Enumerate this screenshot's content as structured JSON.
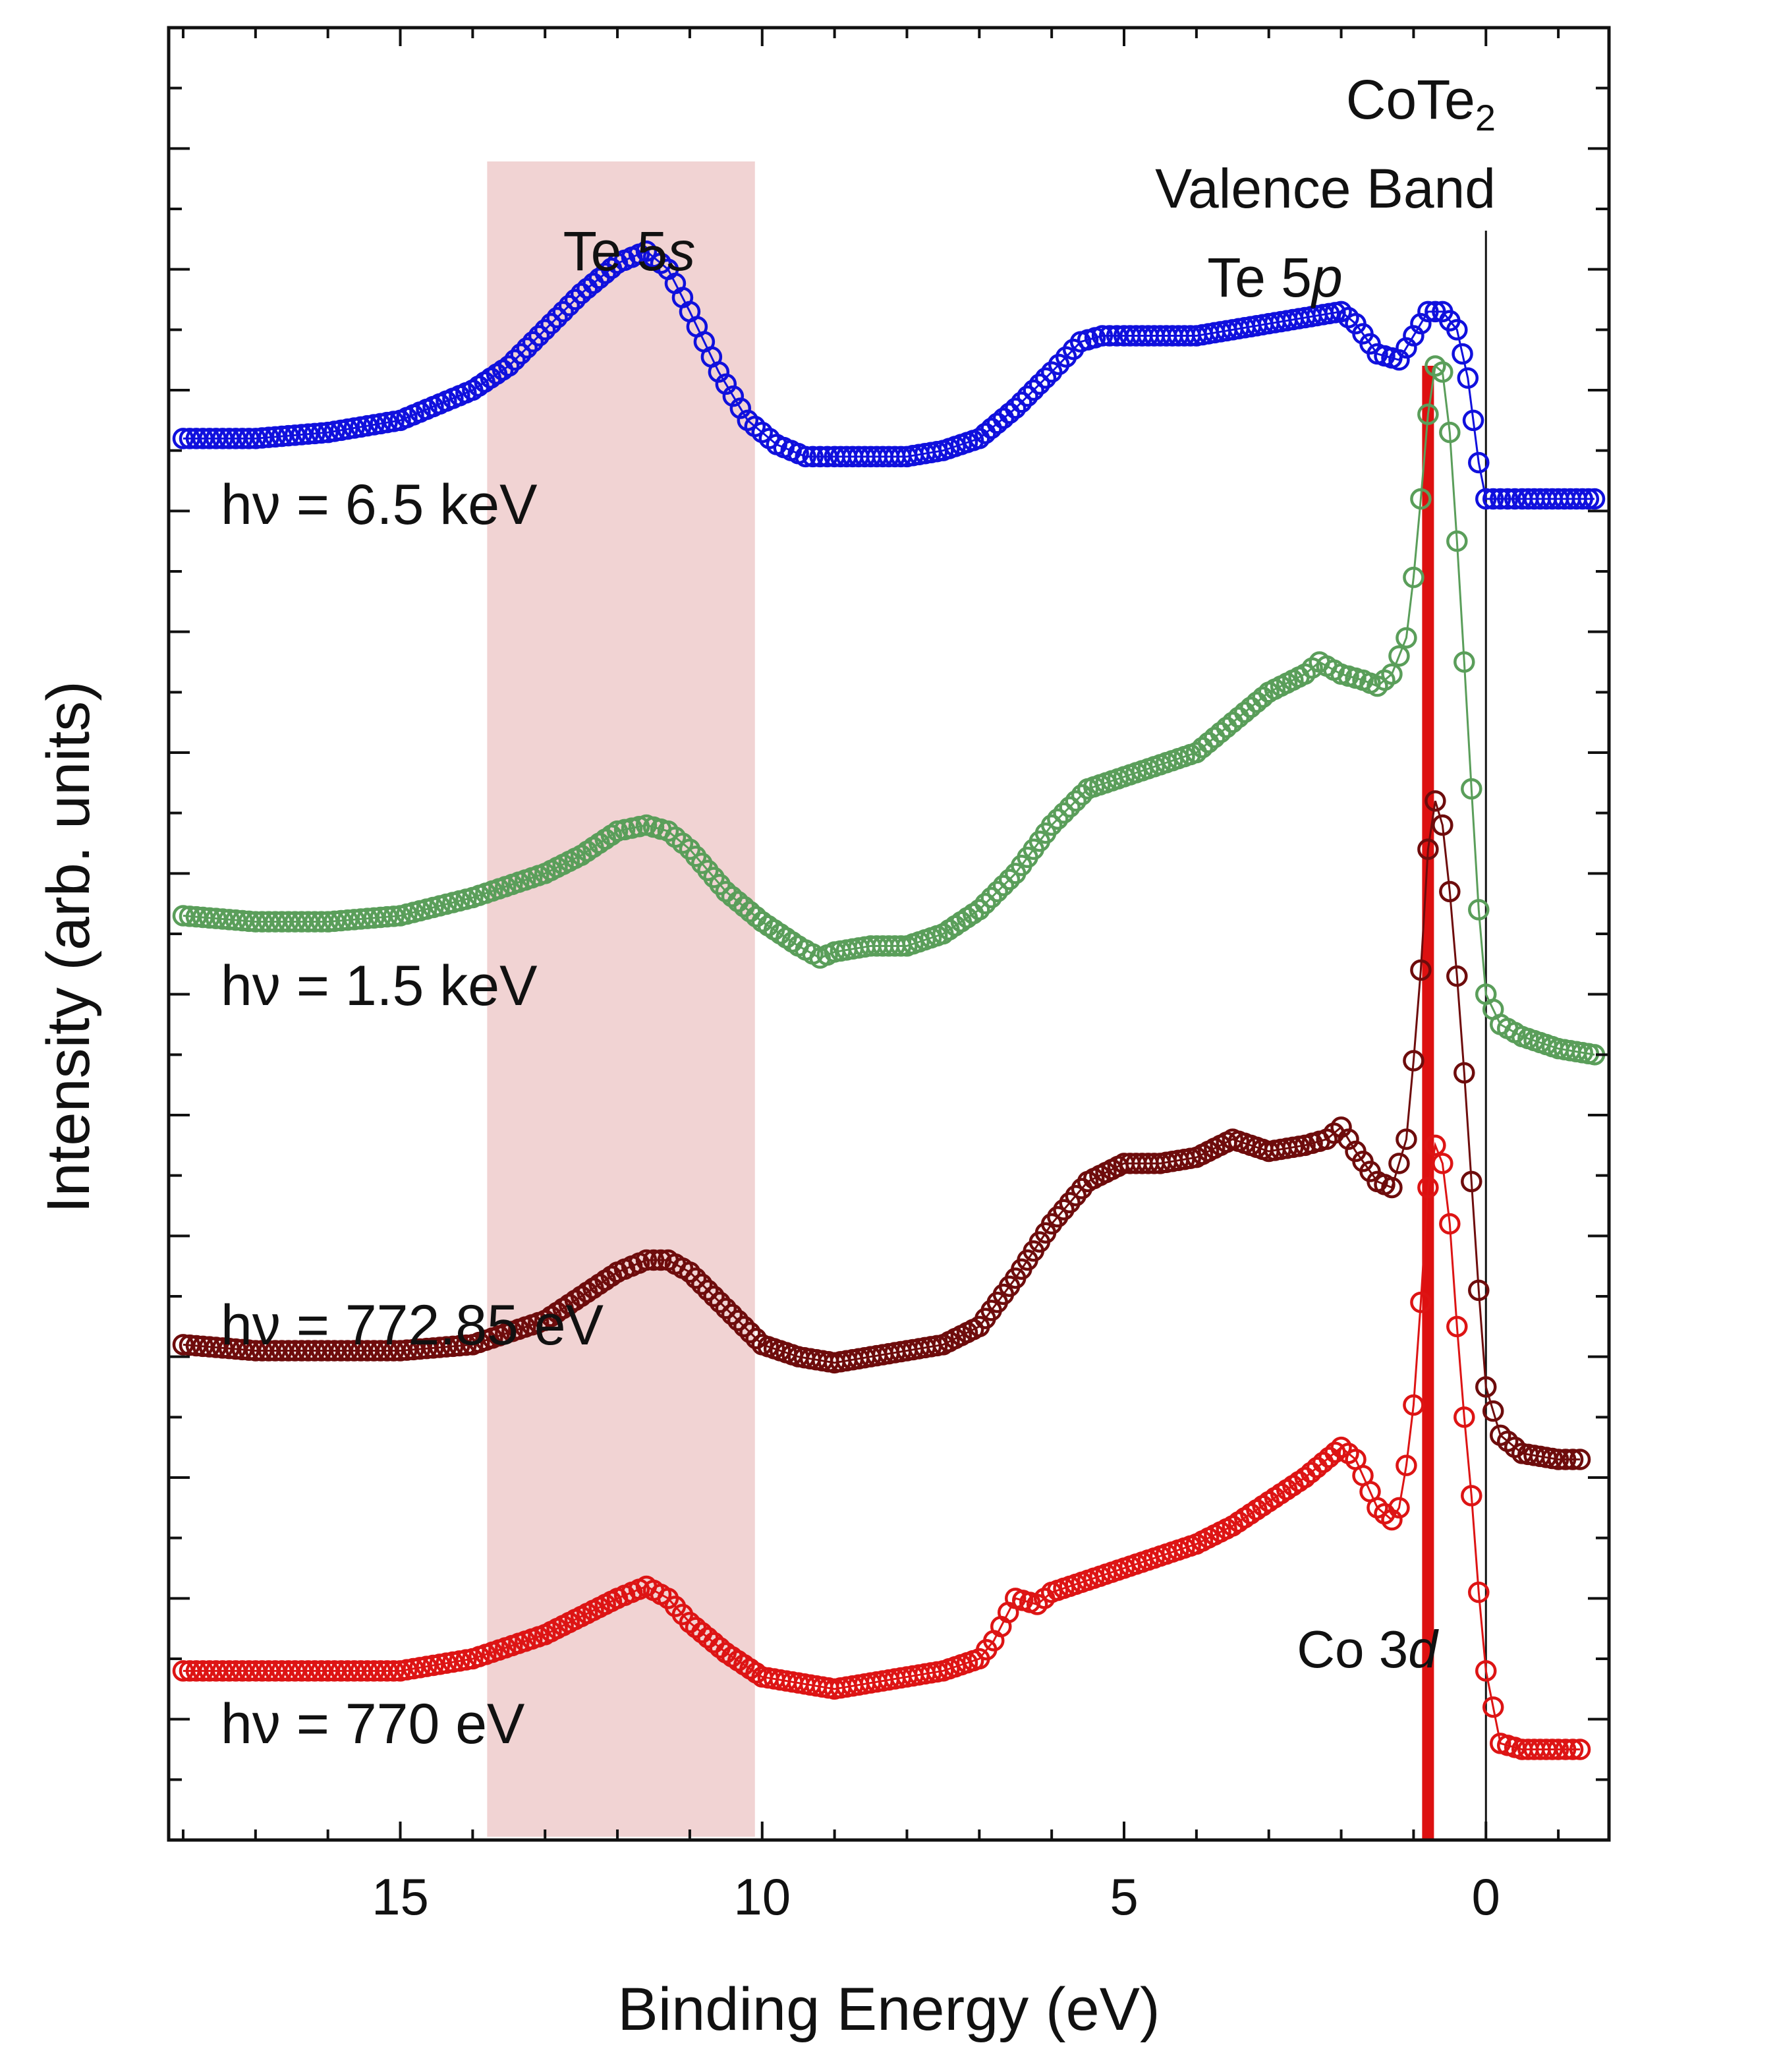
{
  "chart_data": {
    "type": "scatter",
    "title": "",
    "xlabel": "Binding Energy (eV)",
    "ylabel": "Intensity (arb. units)",
    "xlim": [
      18.2,
      -1.7
    ],
    "ylim": [
      0,
      30
    ],
    "x_reversed": true,
    "xticks": [
      15,
      10,
      5,
      0
    ],
    "xtick_labels": [
      "15",
      "10",
      "5",
      "0"
    ],
    "grid": false,
    "colors": {
      "blue": "#1010dd",
      "green": "#5a9e5a",
      "darkred": "#6e0c0c",
      "red": "#dd1414",
      "band": "#f1d3d3",
      "co3d_line": "#dd1010"
    },
    "shaded_region": {
      "label": "Te 5s",
      "x_range": [
        13.8,
        10.1
      ]
    },
    "vertical_lines": [
      {
        "name": "fermi-level-line",
        "x": 0.0,
        "color": "#111111"
      },
      {
        "name": "co-3d-line",
        "x": 0.8,
        "color": "#dd1010"
      }
    ],
    "annotations": {
      "compound": "CoTe",
      "compound_sub": "2",
      "valence_band": "Valence Band",
      "te5p_base": "Te 5",
      "te5p_orb": "p",
      "te5s_base": "Te 5",
      "te5s_orb": "s",
      "co3d_base": "Co 3",
      "co3d_orb": "d"
    },
    "series": [
      {
        "name": "hν = 6.5 keV",
        "color": "#1010dd",
        "x": [
          18.0,
          17.0,
          16.0,
          15.0,
          14.0,
          13.5,
          13.0,
          12.5,
          12.0,
          11.6,
          11.3,
          11.0,
          10.6,
          10.2,
          9.8,
          9.4,
          9.0,
          8.5,
          8.0,
          7.5,
          7.0,
          6.5,
          6.0,
          5.6,
          5.3,
          5.0,
          4.5,
          4.0,
          3.5,
          3.0,
          2.5,
          2.0,
          1.8,
          1.5,
          1.2,
          1.0,
          0.8,
          0.6,
          0.4,
          0.25,
          0.1,
          0.0,
          -0.2,
          -0.5,
          -1.0,
          -1.5
        ],
        "y": [
          23.2,
          23.2,
          23.3,
          23.5,
          24.0,
          24.4,
          25.0,
          25.6,
          26.1,
          26.3,
          26.0,
          25.3,
          24.3,
          23.5,
          23.1,
          22.9,
          22.9,
          22.9,
          22.9,
          23.0,
          23.2,
          23.7,
          24.3,
          24.8,
          24.9,
          24.9,
          24.9,
          24.9,
          25.0,
          25.1,
          25.2,
          25.3,
          25.1,
          24.6,
          24.5,
          24.9,
          25.3,
          25.3,
          25.0,
          24.2,
          22.8,
          22.2,
          22.2,
          22.2,
          22.2,
          22.2
        ]
      },
      {
        "name": "hν = 1.5 keV",
        "color": "#5a9e5a",
        "x": [
          18.0,
          17.0,
          16.0,
          15.0,
          14.0,
          13.0,
          12.5,
          12.0,
          11.6,
          11.3,
          11.0,
          10.5,
          10.0,
          9.5,
          9.2,
          9.0,
          8.5,
          8.0,
          7.5,
          7.0,
          6.5,
          6.0,
          5.5,
          5.0,
          4.5,
          4.0,
          3.5,
          3.0,
          2.5,
          2.3,
          2.0,
          1.7,
          1.5,
          1.3,
          1.1,
          1.0,
          0.9,
          0.8,
          0.7,
          0.6,
          0.5,
          0.4,
          0.3,
          0.2,
          0.1,
          0.0,
          -0.2,
          -0.5,
          -1.0,
          -1.5
        ],
        "y": [
          15.3,
          15.2,
          15.2,
          15.3,
          15.6,
          16.0,
          16.3,
          16.7,
          16.8,
          16.7,
          16.4,
          15.7,
          15.2,
          14.8,
          14.6,
          14.7,
          14.8,
          14.8,
          15.0,
          15.4,
          16.0,
          16.8,
          17.4,
          17.6,
          17.8,
          18.0,
          18.5,
          19.0,
          19.3,
          19.5,
          19.3,
          19.2,
          19.1,
          19.3,
          19.9,
          20.9,
          22.2,
          23.6,
          24.4,
          24.3,
          23.3,
          21.5,
          19.5,
          17.4,
          15.4,
          14.0,
          13.5,
          13.3,
          13.1,
          13.0
        ]
      },
      {
        "name": "hν = 772.85 eV",
        "color": "#6e0c0c",
        "x": [
          18.0,
          17.0,
          16.0,
          15.0,
          14.0,
          13.0,
          12.5,
          12.0,
          11.6,
          11.3,
          11.0,
          10.5,
          10.0,
          9.5,
          9.0,
          8.5,
          8.0,
          7.5,
          7.0,
          6.5,
          6.0,
          5.5,
          5.0,
          4.5,
          4.0,
          3.5,
          3.0,
          2.5,
          2.2,
          2.0,
          1.8,
          1.5,
          1.3,
          1.1,
          1.0,
          0.9,
          0.8,
          0.7,
          0.6,
          0.5,
          0.4,
          0.3,
          0.2,
          0.1,
          0.0,
          -0.2,
          -0.5,
          -1.0,
          -1.3
        ],
        "y": [
          8.2,
          8.1,
          8.1,
          8.1,
          8.2,
          8.6,
          9.0,
          9.4,
          9.6,
          9.6,
          9.4,
          8.8,
          8.2,
          8.0,
          7.9,
          8.0,
          8.1,
          8.2,
          8.5,
          9.3,
          10.2,
          10.9,
          11.2,
          11.2,
          11.3,
          11.6,
          11.4,
          11.5,
          11.6,
          11.8,
          11.4,
          10.9,
          10.8,
          11.6,
          12.9,
          14.4,
          16.4,
          17.2,
          16.8,
          15.7,
          14.3,
          12.7,
          10.9,
          9.1,
          7.5,
          6.7,
          6.4,
          6.3,
          6.3
        ]
      },
      {
        "name": "hν = 770 eV",
        "color": "#dd1414",
        "x": [
          18.0,
          17.0,
          16.0,
          15.0,
          14.0,
          13.0,
          12.5,
          12.0,
          11.6,
          11.3,
          11.0,
          10.5,
          10.0,
          9.5,
          9.0,
          8.5,
          8.0,
          7.5,
          7.0,
          6.8,
          6.5,
          6.2,
          6.0,
          5.5,
          5.0,
          4.5,
          4.0,
          3.5,
          3.0,
          2.5,
          2.0,
          1.8,
          1.5,
          1.3,
          1.2,
          1.1,
          1.0,
          0.9,
          0.8,
          0.7,
          0.6,
          0.5,
          0.4,
          0.3,
          0.2,
          0.1,
          0.0,
          -0.2,
          -0.5,
          -1.0,
          -1.3
        ],
        "y": [
          2.8,
          2.8,
          2.8,
          2.8,
          3.0,
          3.4,
          3.7,
          4.0,
          4.2,
          4.0,
          3.6,
          3.1,
          2.7,
          2.6,
          2.5,
          2.6,
          2.7,
          2.8,
          3.0,
          3.3,
          4.0,
          3.9,
          4.1,
          4.3,
          4.5,
          4.7,
          4.9,
          5.2,
          5.6,
          6.0,
          6.5,
          6.3,
          5.5,
          5.3,
          5.5,
          6.2,
          7.2,
          8.9,
          10.8,
          11.5,
          11.2,
          10.2,
          8.5,
          7.0,
          5.7,
          4.1,
          2.8,
          1.6,
          1.5,
          1.5,
          1.5
        ]
      }
    ],
    "series_labels": [
      {
        "prefix": "hν = ",
        "value": "6.5 keV"
      },
      {
        "prefix": "hν = ",
        "value": "1.5 keV"
      },
      {
        "prefix": "hν = ",
        "value": "772.85 eV"
      },
      {
        "prefix": "hν = ",
        "value": "770 eV"
      }
    ]
  }
}
